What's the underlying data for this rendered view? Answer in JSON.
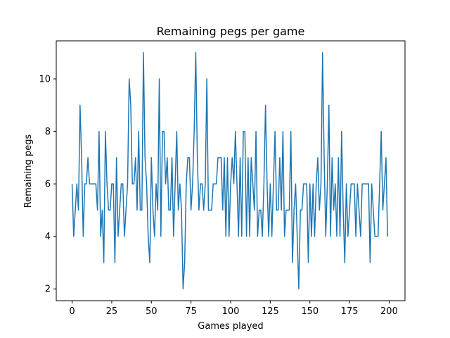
{
  "chart_data": {
    "type": "line",
    "title": "Remaining pegs per game",
    "xlabel": "Games played",
    "ylabel": "Remaining pegs",
    "xlim": [
      -10,
      210
    ],
    "ylim": [
      1.55,
      11.45
    ],
    "x_ticks": [
      0,
      25,
      50,
      75,
      100,
      125,
      150,
      175,
      200
    ],
    "y_ticks": [
      2,
      4,
      6,
      8,
      10
    ],
    "grid": false,
    "line_color": "#1f77b4",
    "series": [
      {
        "x": [
          0,
          1,
          2,
          3,
          4,
          5,
          6,
          7,
          8,
          9,
          10,
          11,
          12,
          13,
          14,
          15,
          16,
          17,
          18,
          19,
          20,
          21,
          22,
          23,
          24,
          25,
          26,
          27,
          28,
          29,
          30,
          31,
          32,
          33,
          34,
          35,
          36,
          37,
          38,
          39,
          40,
          41,
          42,
          43,
          44,
          45,
          46,
          47,
          48,
          49,
          50,
          51,
          52,
          53,
          54,
          55,
          56,
          57,
          58,
          59,
          60,
          61,
          62,
          63,
          64,
          65,
          66,
          67,
          68,
          69,
          70,
          71,
          72,
          73,
          74,
          75,
          76,
          77,
          78,
          79,
          80,
          81,
          82,
          83,
          84,
          85,
          86,
          87,
          88,
          89,
          90,
          91,
          92,
          93,
          94,
          95,
          96,
          97,
          98,
          99,
          100,
          101,
          102,
          103,
          104,
          105,
          106,
          107,
          108,
          109,
          110,
          111,
          112,
          113,
          114,
          115,
          116,
          117,
          118,
          119,
          120,
          121,
          122,
          123,
          124,
          125,
          126,
          127,
          128,
          129,
          130,
          131,
          132,
          133,
          134,
          135,
          136,
          137,
          138,
          139,
          140,
          141,
          142,
          143,
          144,
          145,
          146,
          147,
          148,
          149,
          150,
          151,
          152,
          153,
          154,
          155,
          156,
          157,
          158,
          159,
          160,
          161,
          162,
          163,
          164,
          165,
          166,
          167,
          168,
          169,
          170,
          171,
          172,
          173,
          174,
          175,
          176,
          177,
          178,
          179,
          180,
          181,
          182,
          183,
          184,
          185,
          186,
          187,
          188,
          189,
          190,
          191,
          192,
          193,
          194,
          195,
          196,
          197,
          198,
          199
        ],
        "values": [
          6,
          4,
          5,
          6,
          5,
          9,
          7,
          4,
          6,
          6,
          7,
          6,
          6,
          6,
          6,
          6,
          5,
          8,
          4,
          5,
          3,
          8,
          6,
          5,
          5,
          6,
          6,
          3,
          7,
          4,
          5,
          6,
          6,
          4,
          5,
          6,
          10,
          9,
          6,
          6,
          7,
          5,
          8,
          5,
          5,
          11,
          7,
          6,
          4,
          3,
          7,
          5,
          4,
          6,
          5,
          10,
          4,
          8,
          8,
          6,
          7,
          5,
          5,
          7,
          4,
          6,
          8,
          5,
          6,
          5,
          2,
          3,
          6,
          7,
          7,
          5,
          6,
          8,
          11,
          7,
          5,
          6,
          6,
          5,
          6,
          10,
          5,
          5,
          5,
          6,
          6,
          6,
          7,
          7,
          7,
          5,
          7,
          4,
          7,
          4,
          6,
          7,
          6,
          8,
          6,
          4,
          7,
          4,
          8,
          8,
          4,
          7,
          4,
          7,
          6,
          5,
          8,
          4,
          5,
          5,
          4,
          6,
          9,
          6,
          4,
          6,
          4,
          6,
          8,
          5,
          5,
          7,
          5,
          8,
          4,
          5,
          5,
          5,
          8,
          3,
          5,
          6,
          4,
          2,
          5,
          5,
          6,
          6,
          6,
          3,
          6,
          4,
          6,
          4,
          6,
          7,
          5,
          6,
          11,
          7,
          4,
          6,
          9,
          4,
          7,
          5,
          6,
          4,
          7,
          4,
          8,
          5,
          3,
          6,
          4,
          5,
          6,
          6,
          6,
          4,
          6,
          5,
          4,
          6,
          6,
          6,
          6,
          6,
          3,
          6,
          5,
          4,
          4,
          4,
          6,
          8,
          5,
          6,
          7,
          4
        ]
      }
    ]
  }
}
